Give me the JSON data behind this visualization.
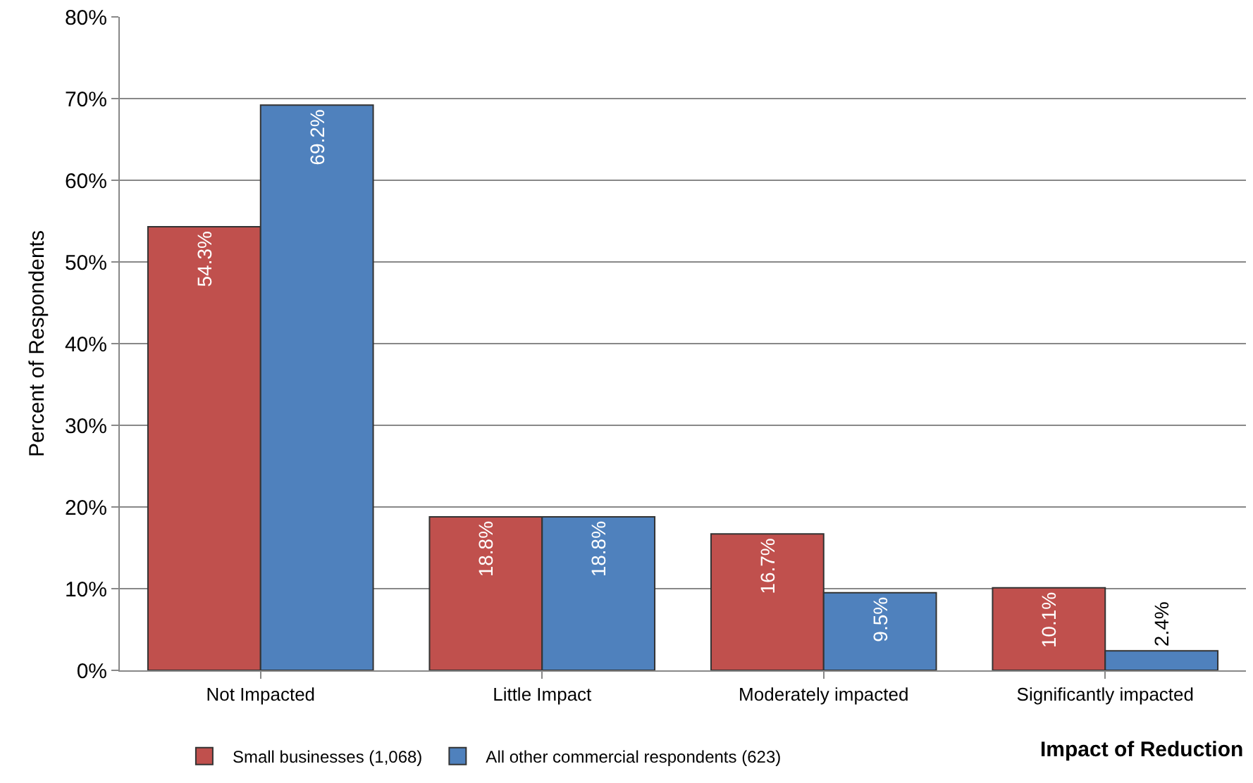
{
  "chart_data": {
    "type": "bar",
    "ylabel": "Percent of Respondents",
    "xlabel": "Impact of Reduction",
    "categories": [
      "Not Impacted",
      "Little Impact",
      "Moderately impacted",
      "Significantly impacted"
    ],
    "series": [
      {
        "name": "Small businesses (1,068)",
        "color": "#c0504d",
        "values": [
          54.3,
          18.8,
          16.7,
          10.1
        ],
        "value_labels": [
          "54.3%",
          "18.8%",
          "16.7%",
          "10.1%"
        ]
      },
      {
        "name": "All other commercial respondents (623)",
        "color": "#4f81bd",
        "values": [
          69.2,
          18.8,
          9.5,
          2.4
        ],
        "value_labels": [
          "69.2%",
          "18.8%",
          "9.5%",
          "2.4%"
        ]
      }
    ],
    "ylim": [
      0,
      80
    ],
    "yticks": [
      {
        "value": 0,
        "label": "0%"
      },
      {
        "value": 10,
        "label": "10%"
      },
      {
        "value": 20,
        "label": "20%"
      },
      {
        "value": 30,
        "label": "30%"
      },
      {
        "value": 40,
        "label": "40%"
      },
      {
        "value": 50,
        "label": "50%"
      },
      {
        "value": 60,
        "label": "60%"
      },
      {
        "value": 70,
        "label": "70%"
      },
      {
        "value": 80,
        "label": "80%"
      }
    ],
    "grid": "y",
    "legend": "bottom left"
  }
}
